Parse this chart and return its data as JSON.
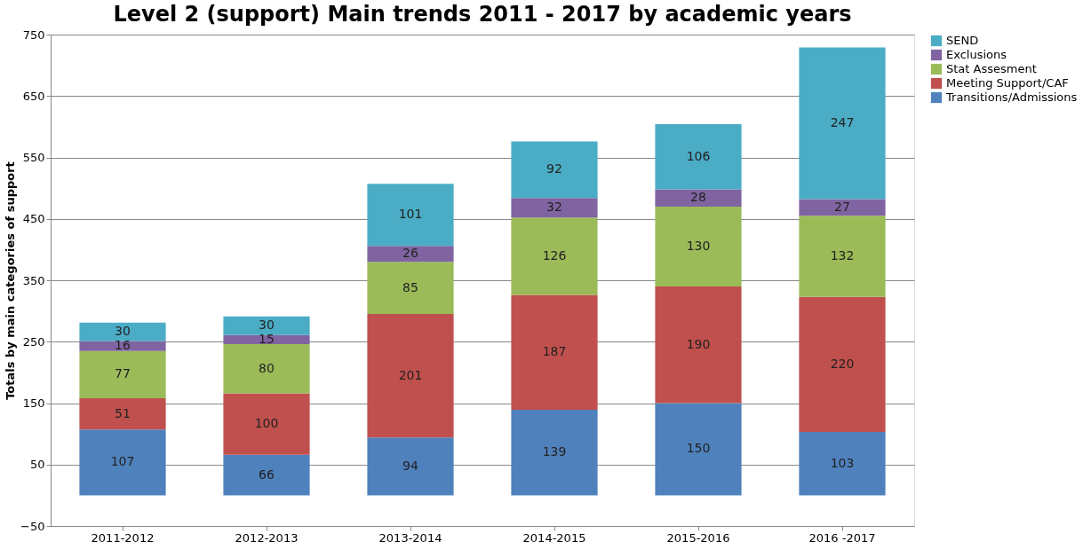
{
  "chart_data": {
    "type": "bar",
    "title": "Level 2 (support) Main trends 2011 - 2017 by academic years",
    "ylabel": "Totals by main categories of support",
    "categories": [
      "2011-2012",
      "2012-2013",
      "2013-2014",
      "2014-2015",
      "2015-2016",
      "2016 -2017"
    ],
    "series": [
      {
        "name": "Transitions/Admissions",
        "color": "#4f81bd",
        "values": [
          107,
          66,
          94,
          139,
          150,
          103
        ]
      },
      {
        "name": "Meeting Support/CAF",
        "color": "#c0504d",
        "values": [
          51,
          100,
          201,
          187,
          190,
          220
        ]
      },
      {
        "name": "Stat Assesment",
        "color": "#9bbb59",
        "values": [
          77,
          80,
          85,
          126,
          130,
          132
        ]
      },
      {
        "name": "Exclusions",
        "color": "#8064a2",
        "values": [
          16,
          15,
          26,
          32,
          28,
          27
        ]
      },
      {
        "name": "SEND",
        "color": "#4bacc6",
        "values": [
          30,
          30,
          101,
          92,
          106,
          247
        ]
      }
    ],
    "stacked": true,
    "data_labels": true,
    "ylim": [
      -50,
      750
    ],
    "yticks": [
      -50,
      50,
      150,
      250,
      350,
      450,
      550,
      650,
      750
    ],
    "grid": "y",
    "legend": "right"
  }
}
